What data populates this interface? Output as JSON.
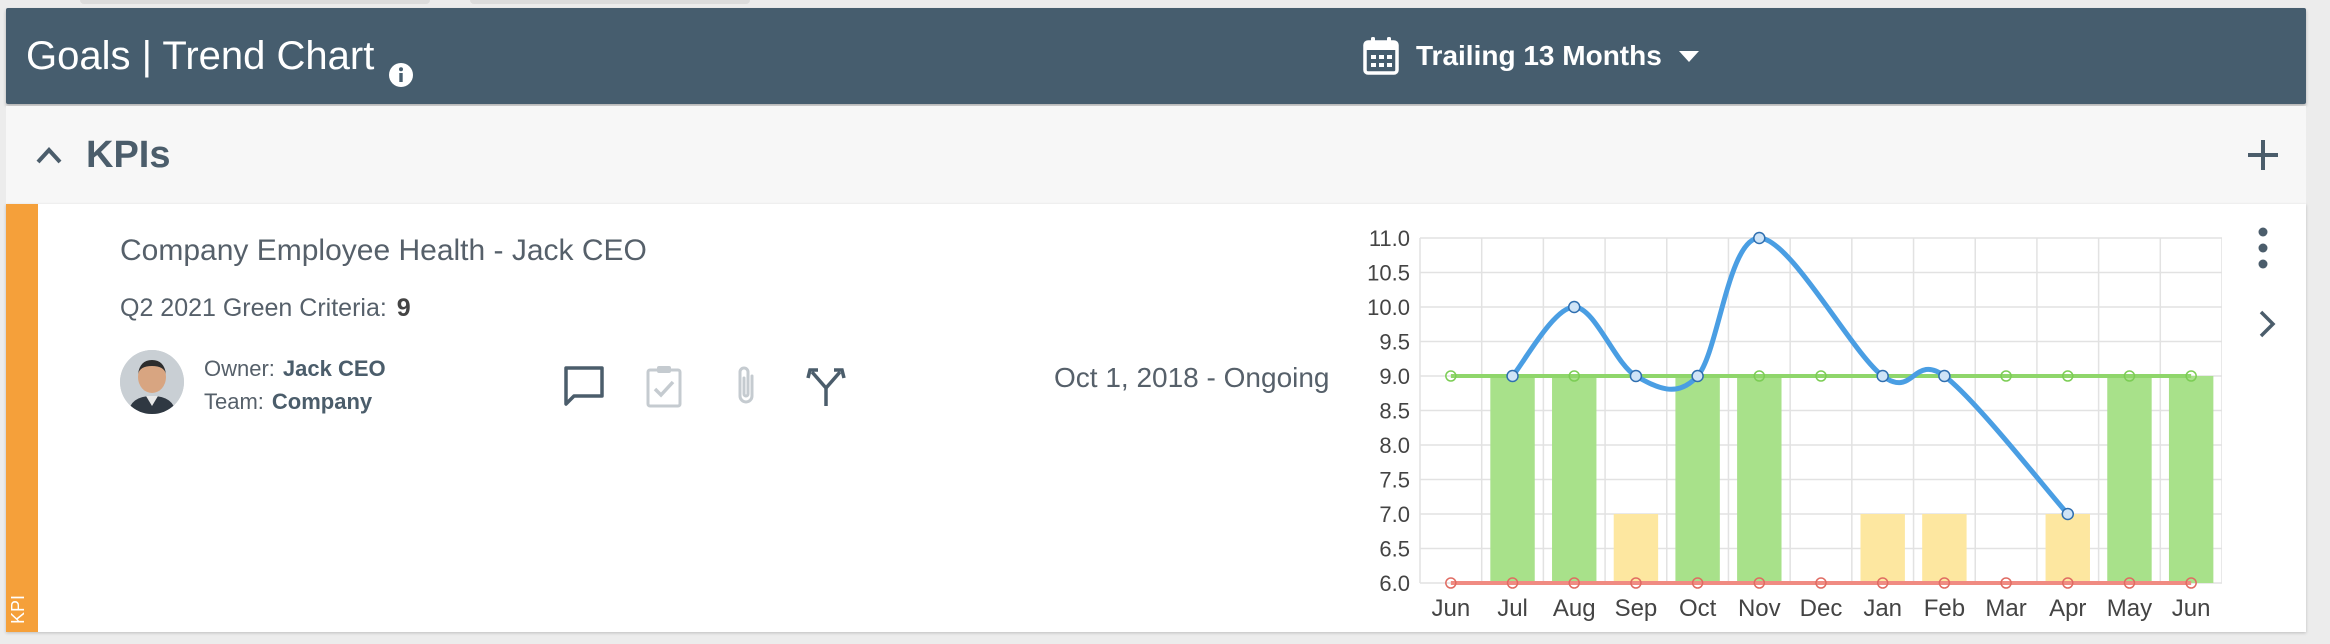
{
  "header": {
    "title": "Goals | Trend Chart",
    "range_label": "Trailing 13 Months"
  },
  "section": {
    "title": "KPIs"
  },
  "kpi": {
    "tag": "KPI",
    "title": "Company Employee Health - Jack CEO",
    "criteria_label": "Q2 2021 Green Criteria:",
    "criteria_value": "9",
    "owner_label": "Owner:",
    "owner": "Jack CEO",
    "team_label": "Team:",
    "team": "Company",
    "date_range": "Oct 1, 2018 - Ongoing"
  },
  "colors": {
    "header_bg": "#465d6e",
    "kpi_strip": "#f5a03a",
    "green_bar": "#a8e18a",
    "yellow_bar": "#fde7a0",
    "actual_line": "#4a9ee3",
    "goal_line": "#8fd66b",
    "red_line": "#f08b82"
  },
  "icons": [
    "info-icon",
    "calendar-icon",
    "caret-down-icon",
    "chevron-up-icon",
    "plus-icon",
    "comment-icon",
    "checklist-icon",
    "paperclip-icon",
    "merge-icon",
    "kebab-icon",
    "chevron-right-icon"
  ],
  "chart_data": {
    "type": "bar",
    "categories": [
      "Jun",
      "Jul",
      "Aug",
      "Sep",
      "Oct",
      "Nov",
      "Dec",
      "Jan",
      "Feb",
      "Mar",
      "Apr",
      "May",
      "Jun"
    ],
    "ylim": [
      6.0,
      11.0
    ],
    "yticks": [
      "6.0",
      "6.5",
      "7.0",
      "7.5",
      "8.0",
      "8.5",
      "9.0",
      "9.5",
      "10.0",
      "10.5",
      "11.0"
    ],
    "bars": [
      {
        "category": "Jun",
        "value": null,
        "status": "none"
      },
      {
        "category": "Jul",
        "value": 9,
        "status": "green"
      },
      {
        "category": "Aug",
        "value": 9,
        "status": "green"
      },
      {
        "category": "Sep",
        "value": 7,
        "status": "yellow"
      },
      {
        "category": "Oct",
        "value": 9,
        "status": "green"
      },
      {
        "category": "Nov",
        "value": 9,
        "status": "green"
      },
      {
        "category": "Dec",
        "value": null,
        "status": "none"
      },
      {
        "category": "Jan",
        "value": 7,
        "status": "yellow"
      },
      {
        "category": "Feb",
        "value": 7,
        "status": "yellow"
      },
      {
        "category": "Mar",
        "value": null,
        "status": "none"
      },
      {
        "category": "Apr",
        "value": 7,
        "status": "yellow"
      },
      {
        "category": "May",
        "value": 9,
        "status": "green"
      },
      {
        "category": "Jun",
        "value": 9,
        "status": "green"
      }
    ],
    "series": [
      {
        "values": [
          null,
          9,
          10,
          9,
          9,
          11,
          null,
          9,
          9,
          null,
          7,
          null,
          null
        ]
      },
      {
        "values": [
          9,
          9,
          9,
          9,
          9,
          9,
          9,
          9,
          9,
          9,
          9,
          9,
          9
        ]
      },
      {
        "values": [
          6,
          6,
          6,
          6,
          6,
          6,
          6,
          6,
          6,
          6,
          6,
          6,
          6
        ]
      }
    ],
    "grid": true
  }
}
